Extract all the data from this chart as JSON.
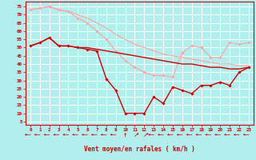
{
  "xlabel": "Vent moyen/en rafales ( km/h )",
  "xlim": [
    -0.5,
    23.5
  ],
  "ylim": [
    3,
    78
  ],
  "yticks": [
    5,
    10,
    15,
    20,
    25,
    30,
    35,
    40,
    45,
    50,
    55,
    60,
    65,
    70,
    75
  ],
  "xticks": [
    0,
    1,
    2,
    3,
    4,
    5,
    6,
    7,
    8,
    9,
    10,
    11,
    12,
    13,
    14,
    15,
    16,
    17,
    18,
    19,
    20,
    21,
    22,
    23
  ],
  "bg_color": "#b2eeee",
  "grid_color": "#ffffff",
  "series": [
    {
      "x": [
        0,
        1,
        2,
        3,
        4,
        5,
        6,
        7,
        8,
        9,
        10,
        11,
        12,
        13,
        14,
        15,
        16,
        17,
        18,
        19,
        20,
        21,
        22,
        23
      ],
      "y": [
        73,
        74,
        75,
        73,
        72,
        70,
        68,
        65,
        62,
        58,
        55,
        52,
        50,
        48,
        46,
        45,
        44,
        43,
        42,
        41,
        40,
        40,
        39,
        39
      ],
      "color": "#ffaaaa",
      "lw": 0.9,
      "marker": null,
      "ms": 0
    },
    {
      "x": [
        0,
        1,
        2,
        3,
        4,
        5,
        6,
        7,
        8,
        9,
        10,
        11,
        12,
        13,
        14,
        15,
        16,
        17,
        18,
        19,
        20,
        21,
        22,
        23
      ],
      "y": [
        73,
        74,
        75,
        73,
        72,
        68,
        65,
        60,
        55,
        48,
        42,
        38,
        35,
        33,
        33,
        32,
        47,
        51,
        50,
        44,
        44,
        53,
        52,
        53
      ],
      "color": "#ffaaaa",
      "lw": 0.9,
      "marker": "D",
      "ms": 1.8
    },
    {
      "x": [
        0,
        1,
        2,
        3,
        4,
        5,
        6,
        7,
        8,
        9,
        10,
        11,
        12,
        13,
        14,
        15,
        16,
        17,
        18,
        19,
        20,
        21,
        22,
        23
      ],
      "y": [
        51,
        53,
        56,
        51,
        51,
        50,
        50,
        49,
        48,
        47,
        46,
        45,
        44,
        43,
        42,
        41,
        40,
        40,
        39,
        38,
        38,
        37,
        37,
        38
      ],
      "color": "#cc0000",
      "lw": 1.0,
      "marker": null,
      "ms": 0
    },
    {
      "x": [
        0,
        1,
        2,
        3,
        4,
        5,
        6,
        7,
        8,
        9,
        10,
        11,
        12,
        13,
        14,
        15,
        16,
        17,
        18,
        19,
        20,
        21,
        22,
        23
      ],
      "y": [
        51,
        53,
        56,
        51,
        51,
        50,
        49,
        48,
        31,
        24,
        10,
        10,
        10,
        20,
        16,
        26,
        24,
        22,
        27,
        27,
        29,
        27,
        35,
        38
      ],
      "color": "#cc0000",
      "lw": 1.0,
      "marker": "D",
      "ms": 1.8
    }
  ],
  "arrow_angles": [
    270,
    270,
    270,
    270,
    270,
    270,
    270,
    270,
    270,
    270,
    0,
    45,
    45,
    270,
    270,
    270,
    270,
    270,
    270,
    270,
    270,
    270,
    270,
    270
  ],
  "arrow_color": "#cc0000",
  "tick_color": "#cc0000",
  "label_color": "#cc0000",
  "axis_color": "#cc0000",
  "spine_color": "#cc0000"
}
